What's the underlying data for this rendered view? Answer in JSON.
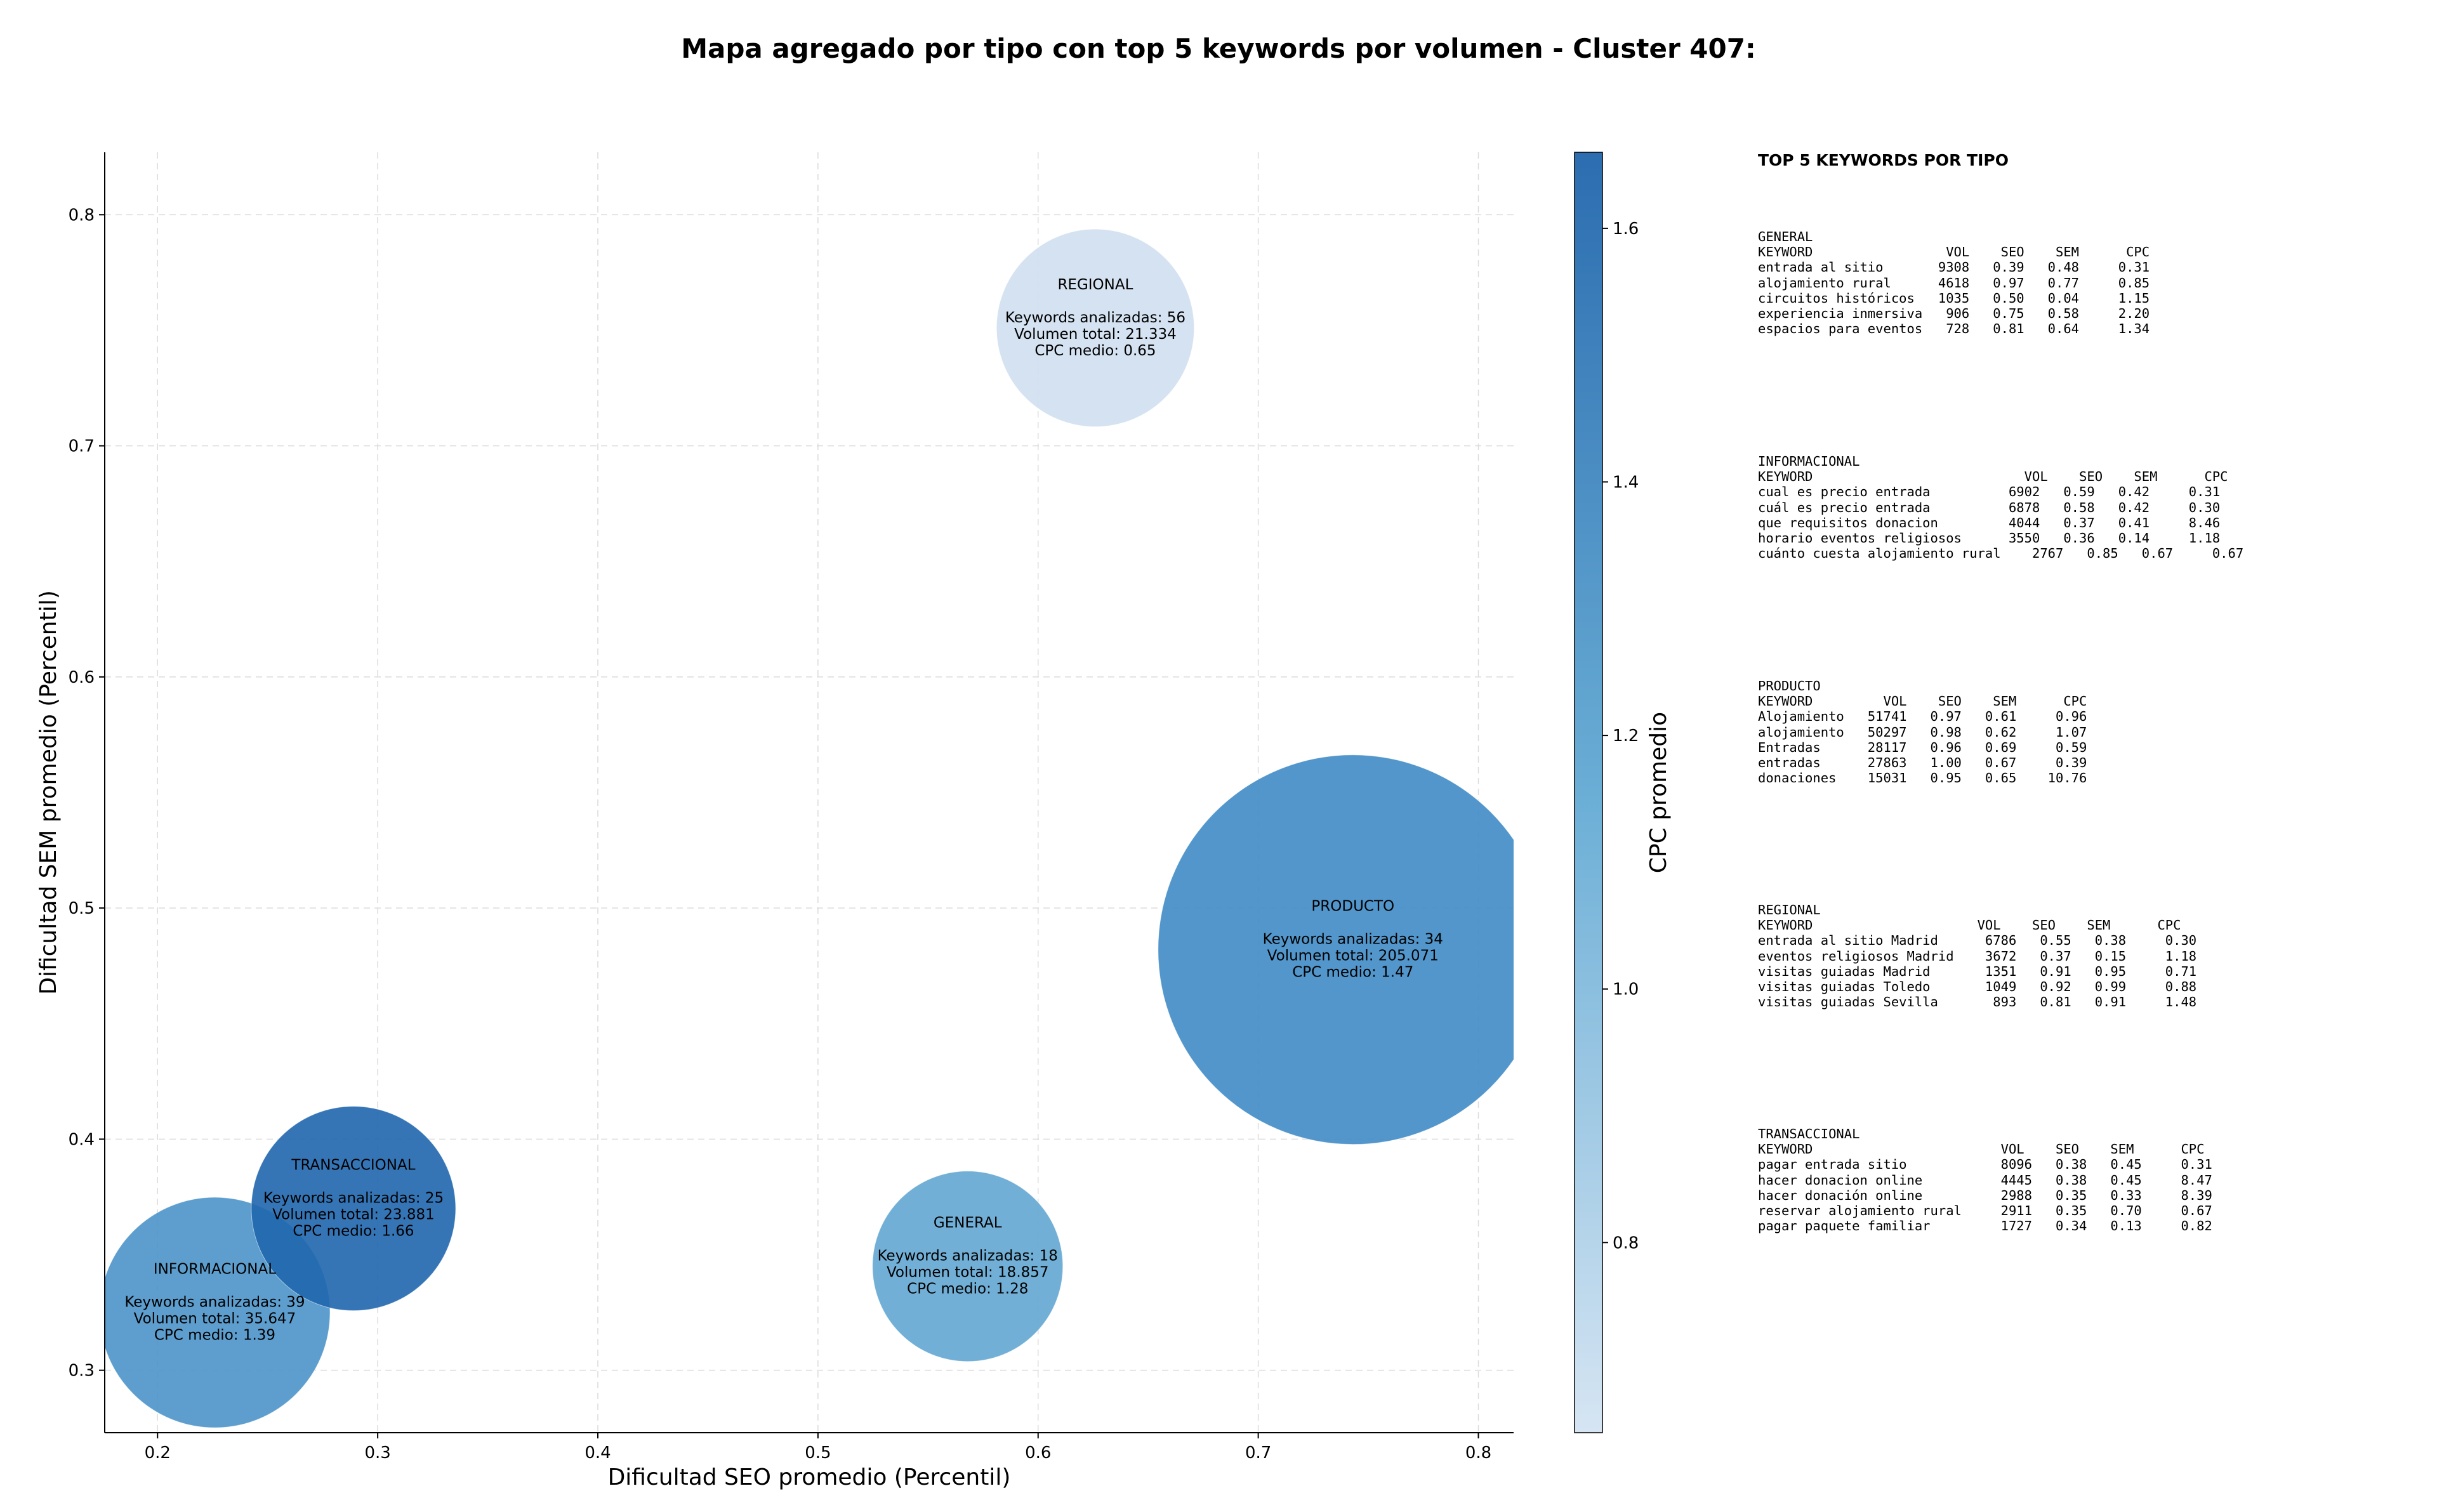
{
  "chart_data": [
    {
      "type": "bubble",
      "title": "Mapa agregado por tipo con top 5 keywords por volumen - Cluster 407:",
      "xlabel": "Dificultad SEO promedio (Percentil)",
      "ylabel": "Dificultad SEM promedio (Percentil)",
      "xlim": [
        0.176,
        0.816
      ],
      "ylim": [
        0.273,
        0.827
      ],
      "xticks": [
        0.2,
        0.3,
        0.4,
        0.5,
        0.6,
        0.7,
        0.8
      ],
      "xtick_labels": [
        "0.2",
        "0.3",
        "0.4",
        "0.5",
        "0.6",
        "0.7",
        "0.8"
      ],
      "yticks": [
        0.3,
        0.4,
        0.5,
        0.6,
        0.7,
        0.8
      ],
      "ytick_labels": [
        "0.3",
        "0.4",
        "0.5",
        "0.6",
        "0.7",
        "0.8"
      ],
      "grid": true,
      "size_encoding": "Volumen total",
      "color_encoding": "CPC promedio",
      "points": [
        {
          "name": "REGIONAL",
          "x": 0.626,
          "y": 0.751,
          "keywords_label": "Keywords analizadas: 56",
          "volume_label": "Volumen total: 21.334",
          "cpc_label": "CPC medio: 0.65",
          "keywords": 56,
          "volume": 21334,
          "cpc": 0.65,
          "color": "#cfdff0"
        },
        {
          "name": "PRODUCTO",
          "x": 0.743,
          "y": 0.482,
          "keywords_label": "Keywords analizadas: 34",
          "volume_label": "Volumen total: 205.071",
          "cpc_label": "CPC medio: 1.47",
          "keywords": 34,
          "volume": 205071,
          "cpc": 1.47,
          "color": "#3f8bc5"
        },
        {
          "name": "GENERAL",
          "x": 0.568,
          "y": 0.345,
          "keywords_label": "Keywords analizadas: 18",
          "volume_label": "Volumen total: 18.857",
          "cpc_label": "CPC medio: 1.28",
          "keywords": 18,
          "volume": 18857,
          "cpc": 1.28,
          "color": "#63a6d2"
        },
        {
          "name": "INFORMACIONAL",
          "x": 0.226,
          "y": 0.325,
          "keywords_label": "Keywords analizadas: 39",
          "volume_label": "Volumen total: 35.647",
          "cpc_label": "CPC medio: 1.39",
          "keywords": 39,
          "volume": 35647,
          "cpc": 1.39,
          "color": "#4b94c9"
        },
        {
          "name": "TRANSACCIONAL",
          "x": 0.289,
          "y": 0.37,
          "keywords_label": "Keywords analizadas: 25",
          "volume_label": "Volumen total: 23.881",
          "cpc_label": "CPC medio: 1.66",
          "keywords": 25,
          "volume": 23881,
          "cpc": 1.66,
          "color": "#1f66ae"
        }
      ]
    },
    {
      "type": "colorbar",
      "label": "CPC promedio",
      "range": [
        0.65,
        1.66
      ],
      "ticks": [
        0.8,
        1.0,
        1.2,
        1.4,
        1.6
      ],
      "tick_labels": [
        "0.8",
        "1.0",
        "1.2",
        "1.4",
        "1.6"
      ],
      "color_min": "#d6e5f3",
      "color_mid": "#6aaed6",
      "color_max": "#2b6db0"
    }
  ],
  "panel": {
    "heading": "TOP 5 KEYWORDS POR TIPO",
    "tables": [
      {
        "type": "GENERAL",
        "header": "KEYWORD                 VOL    SEO    SEM      CPC",
        "rows": [
          "entrada al sitio       9308   0.39   0.48     0.31",
          "alojamiento rural      4618   0.97   0.77     0.85",
          "circuitos históricos   1035   0.50   0.04     1.15",
          "experiencia inmersiva   906   0.75   0.58     2.20",
          "espacios para eventos   728   0.81   0.64     1.34"
        ]
      },
      {
        "type": "INFORMACIONAL",
        "header": "KEYWORD                           VOL    SEO    SEM      CPC",
        "rows": [
          "cual es precio entrada          6902   0.59   0.42     0.31",
          "cuál es precio entrada          6878   0.58   0.42     0.30",
          "que requisitos donacion         4044   0.37   0.41     8.46",
          "horario eventos religiosos      3550   0.36   0.14     1.18",
          "cuánto cuesta alojamiento rural    2767   0.85   0.67     0.67"
        ]
      },
      {
        "type": "PRODUCTO",
        "header": "KEYWORD         VOL    SEO    SEM      CPC",
        "rows": [
          "Alojamiento   51741   0.97   0.61     0.96",
          "alojamiento   50297   0.98   0.62     1.07",
          "Entradas      28117   0.96   0.69     0.59",
          "entradas      27863   1.00   0.67     0.39",
          "donaciones    15031   0.95   0.65    10.76"
        ]
      },
      {
        "type": "REGIONAL",
        "header": "KEYWORD                     VOL    SEO    SEM      CPC",
        "rows": [
          "entrada al sitio Madrid      6786   0.55   0.38     0.30",
          "eventos religiosos Madrid    3672   0.37   0.15     1.18",
          "visitas guiadas Madrid       1351   0.91   0.95     0.71",
          "visitas guiadas Toledo       1049   0.92   0.99     0.88",
          "visitas guiadas Sevilla       893   0.81   0.91     1.48"
        ]
      },
      {
        "type": "TRANSACCIONAL",
        "header": "KEYWORD                        VOL    SEO    SEM      CPC",
        "rows": [
          "pagar entrada sitio            8096   0.38   0.45     0.31",
          "hacer donacion online          4445   0.38   0.45     8.47",
          "hacer donación online          2988   0.35   0.33     8.39",
          "reservar alojamiento rural     2911   0.35   0.70     0.67",
          "pagar paquete familiar         1727   0.34   0.13     0.82"
        ]
      }
    ]
  }
}
